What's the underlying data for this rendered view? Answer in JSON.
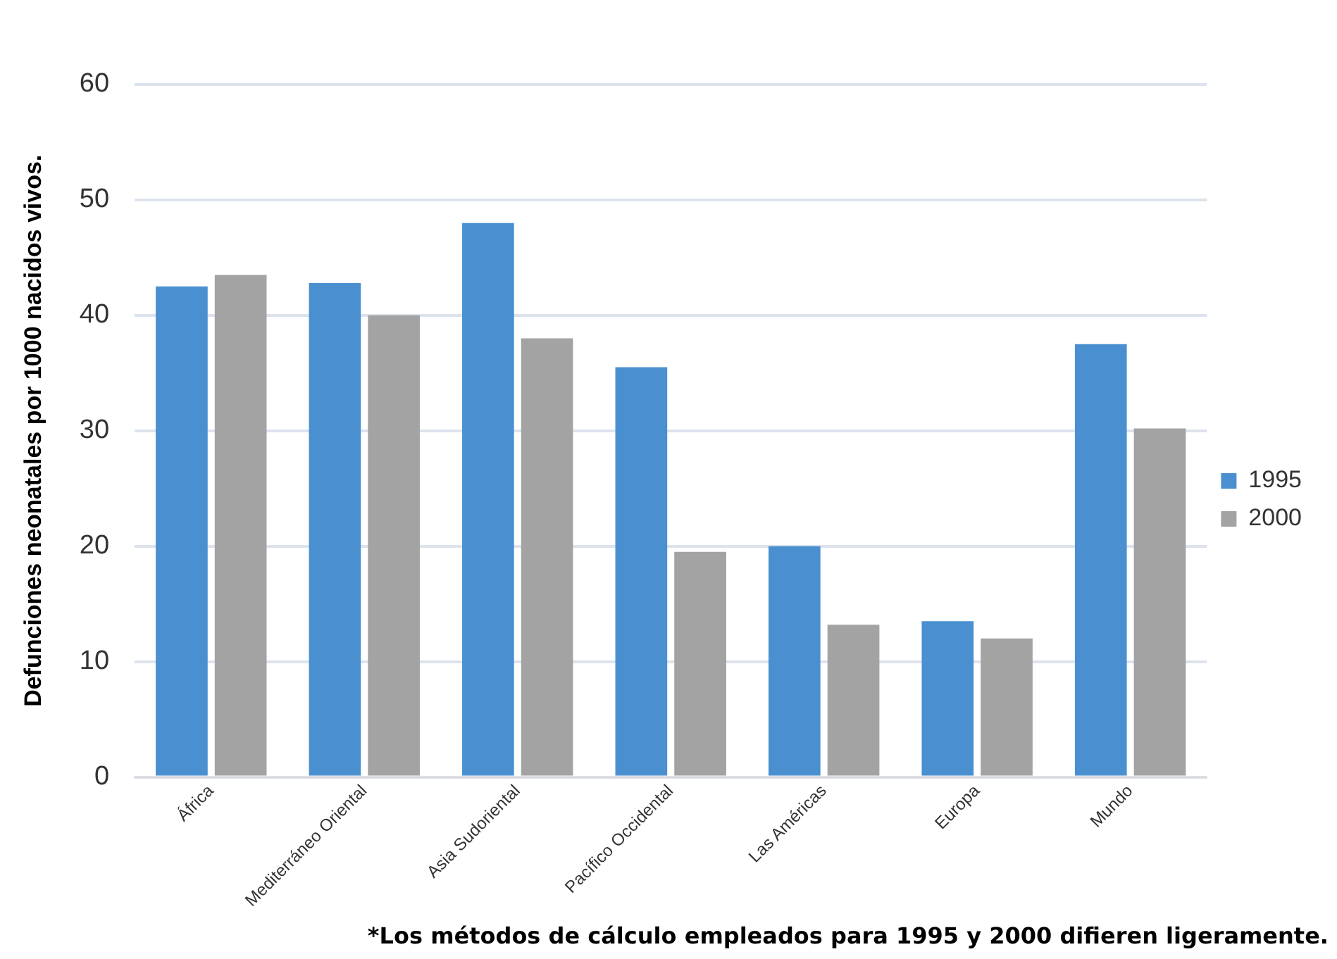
{
  "chart_data": {
    "type": "bar",
    "ylabel": "Defunciones neonatales por 1000 nacidos vivos.",
    "categories": [
      "África",
      "Mediterráneo Oriental",
      "Asia Sudoriental",
      "Pacífico Occidental",
      "Las Américas",
      "Europa",
      "Mundo"
    ],
    "series": [
      {
        "name": "1995",
        "color": "#4a90d0",
        "values": [
          42.5,
          42.8,
          48,
          35.5,
          20,
          13.5,
          37.5
        ]
      },
      {
        "name": "2000",
        "color": "#a3a3a3",
        "values": [
          43.5,
          40,
          38,
          19.5,
          13.2,
          12,
          30.2
        ]
      }
    ],
    "ylim": [
      0,
      60
    ],
    "yticks": [
      0,
      10,
      20,
      30,
      40,
      50,
      60
    ],
    "grid": "y",
    "legend": "right",
    "annotations": [
      "*Los métodos de cálculo empleados para 1995 y 2000 difieren ligeramente."
    ]
  }
}
